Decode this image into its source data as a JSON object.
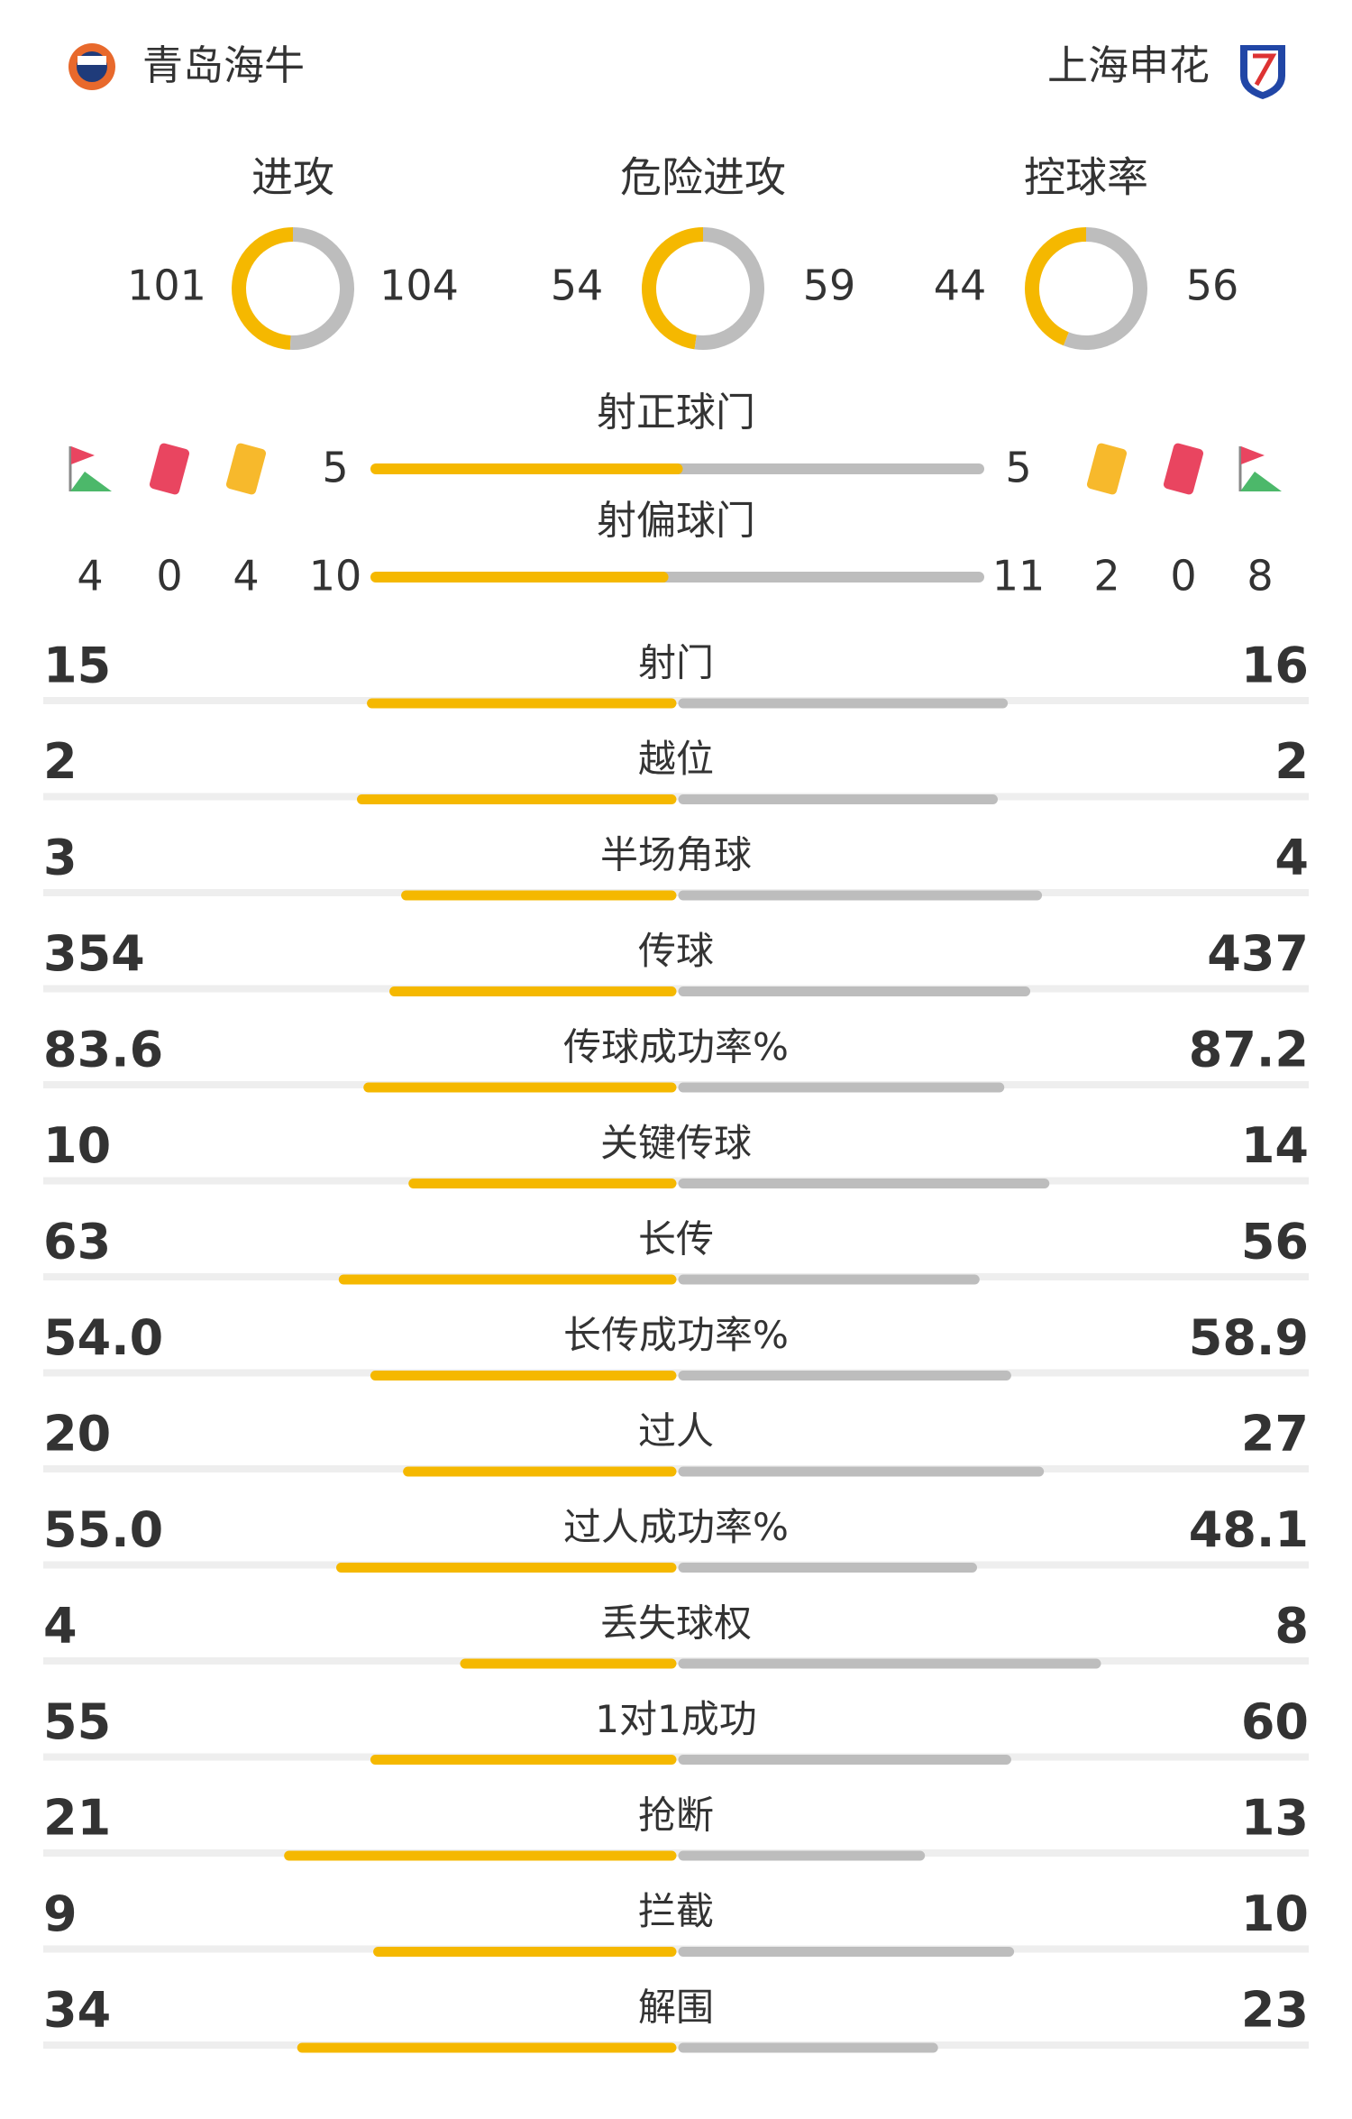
{
  "header": {
    "home": "青岛海牛",
    "away": "上海申花"
  },
  "rings": [
    {
      "label": "进攻",
      "home": 101,
      "away": 104
    },
    {
      "label": "危险进攻",
      "home": 54,
      "away": 59
    },
    {
      "label": "控球率",
      "home": 44,
      "away": 56
    }
  ],
  "shots": [
    {
      "label": "射正球门",
      "home": 5,
      "away": 5
    },
    {
      "label": "射偏球门",
      "home": 10,
      "away": 11
    }
  ],
  "discipline": {
    "home": {
      "corners": 4,
      "red": 0,
      "yellow": 4
    },
    "away": {
      "yellow": 2,
      "red": 0,
      "corners": 8
    }
  },
  "stats": [
    {
      "label": "射门",
      "home": "15",
      "away": "16"
    },
    {
      "label": "越位",
      "home": "2",
      "away": "2"
    },
    {
      "label": "半场角球",
      "home": "3",
      "away": "4"
    },
    {
      "label": "传球",
      "home": "354",
      "away": "437"
    },
    {
      "label": "传球成功率%",
      "home": "83.6",
      "away": "87.2"
    },
    {
      "label": "关键传球",
      "home": "10",
      "away": "14"
    },
    {
      "label": "长传",
      "home": "63",
      "away": "56"
    },
    {
      "label": "长传成功率%",
      "home": "54.0",
      "away": "58.9"
    },
    {
      "label": "过人",
      "home": "20",
      "away": "27"
    },
    {
      "label": "过人成功率%",
      "home": "55.0",
      "away": "48.1"
    },
    {
      "label": "丢失球权",
      "home": "4",
      "away": "8"
    },
    {
      "label": "1对1成功",
      "home": "55",
      "away": "60"
    },
    {
      "label": "抢断",
      "home": "21",
      "away": "13"
    },
    {
      "label": "拦截",
      "home": "9",
      "away": "10"
    },
    {
      "label": "解围",
      "home": "34",
      "away": "23"
    }
  ]
}
